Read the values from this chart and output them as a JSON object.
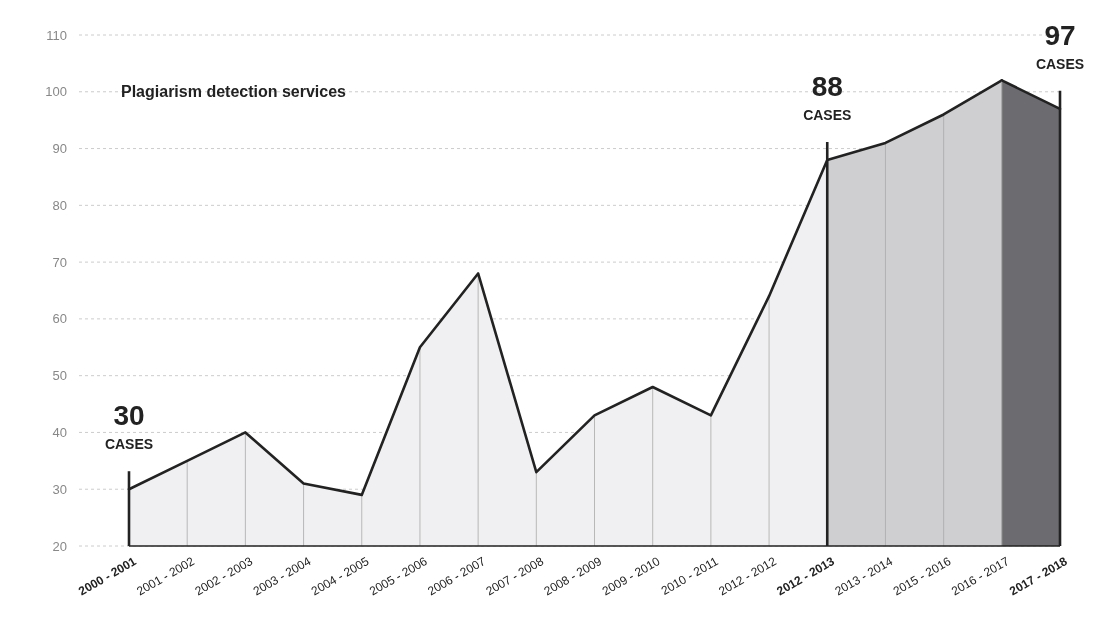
{
  "chart_data": {
    "type": "area",
    "categories": [
      "2000 - 2001",
      "2001 - 2002",
      "2002 - 2003",
      "2003 - 2004",
      "2004 - 2005",
      "2005 - 2006",
      "2006 - 2007",
      "2007 - 2008",
      "2008 - 2009",
      "2009 - 2010",
      "2010 - 2011",
      "2012 - 2012",
      "2012 - 2013",
      "2013 - 2014",
      "2015 - 2016",
      "2016 - 2017",
      "2017 - 2018"
    ],
    "annotations": [
      "Plagiarism detection services",
      {
        "text": "30\nCASES",
        "x": "2000 - 2001",
        "y": 30
      },
      {
        "text": "88\nCASES",
        "x": "2012 - 2013",
        "y": 88
      },
      {
        "text": "97\nCASES",
        "x": "2017 - 2018",
        "y": 97
      }
    ],
    "series": [
      {
        "color": "#f0f0f2",
        "values": [
          30,
          35,
          40,
          31,
          29,
          55,
          68,
          33,
          43,
          48,
          43,
          64,
          88,
          null,
          null,
          null,
          null
        ]
      },
      {
        "color": "#cfcfd1",
        "values": [
          null,
          null,
          null,
          null,
          null,
          null,
          null,
          null,
          null,
          null,
          null,
          null,
          88,
          91,
          96,
          102,
          null
        ]
      },
      {
        "color": "#6c6c70",
        "values": [
          null,
          null,
          null,
          null,
          null,
          null,
          null,
          null,
          null,
          null,
          null,
          null,
          null,
          null,
          null,
          102,
          97
        ]
      }
    ],
    "ylim": [
      20,
      110
    ],
    "yticks": [
      20,
      30,
      40,
      50,
      60,
      70,
      80,
      90,
      100,
      110
    ],
    "ref_lines": [
      {
        "axis": "x",
        "value": "2000 - 2001",
        "color": "#222222"
      },
      {
        "axis": "x",
        "value": "2012 - 2013",
        "color": "#222222"
      },
      {
        "axis": "x",
        "value": "2017 - 2018",
        "color": "#222222"
      }
    ],
    "grid": true,
    "line_style": "solid"
  }
}
